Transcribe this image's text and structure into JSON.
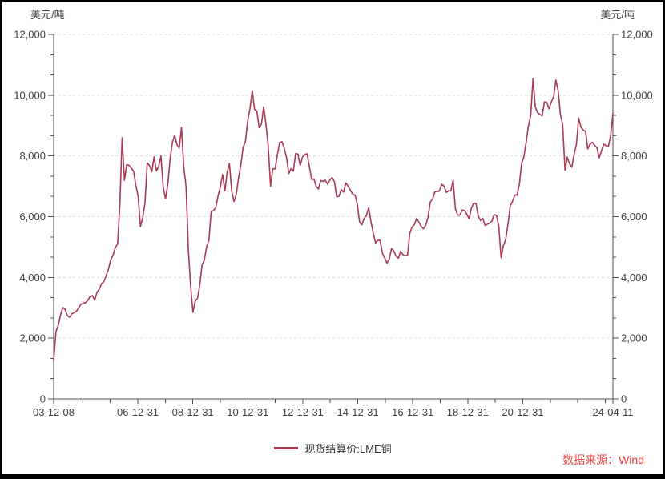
{
  "units": {
    "left_label": "美元/吨",
    "right_label": "美元/吨"
  },
  "legend": {
    "label": "现货结算价:LME铜",
    "swatch_color": "#a83a52"
  },
  "source": {
    "label": "数据来源：Wind",
    "color": "#e83c3c"
  },
  "chart_data": {
    "type": "line",
    "title": "",
    "xlabel": "",
    "ylabel_left": "美元/吨",
    "ylabel_right": "美元/吨",
    "ylim": [
      0,
      12000
    ],
    "y_ticks": [
      0,
      2000,
      4000,
      6000,
      8000,
      10000,
      12000
    ],
    "y_tick_labels": [
      "0",
      "2,000",
      "4,000",
      "6,000",
      "8,000",
      "10,000",
      "12,000"
    ],
    "y_minor_divisions": 3,
    "grid": "horizontal dashed lines at major y ticks",
    "legend_position": "bottom-center",
    "axis_color": "#4d4d4d",
    "grid_color": "#dcdcdc",
    "tick_label_color": "#404040",
    "x_range_decimal_years": [
      2003.94,
      2024.28
    ],
    "x_major_ticks": [
      {
        "label": "03-12-08",
        "t": 2003.94
      },
      {
        "label": "06-12-31",
        "t": 2007.0
      },
      {
        "label": "08-12-31",
        "t": 2009.0
      },
      {
        "label": "10-12-31",
        "t": 2011.0
      },
      {
        "label": "12-12-31",
        "t": 2013.0
      },
      {
        "label": "14-12-31",
        "t": 2015.0
      },
      {
        "label": "16-12-31",
        "t": 2017.0
      },
      {
        "label": "18-12-31",
        "t": 2019.0
      },
      {
        "label": "20-12-31",
        "t": 2021.0
      },
      {
        "label": "24-04-11",
        "t": 2024.28
      }
    ],
    "x_minor_ticks_t": [
      2005.0,
      2006.0,
      2008.0,
      2010.0,
      2012.0,
      2014.0,
      2016.0,
      2018.0,
      2020.0,
      2022.0,
      2023.0,
      2024.0
    ],
    "series": [
      {
        "name": "现货结算价:LME铜",
        "color": "#a83a52",
        "start_date": "2003-12-08",
        "end_date": "2024-04-11",
        "sampling": "monthly (approx. values read from plot, USD/ton)",
        "values": [
          1250,
          2210,
          2420,
          2760,
          3010,
          2950,
          2740,
          2690,
          2810,
          2840,
          2890,
          3010,
          3120,
          3150,
          3170,
          3250,
          3380,
          3400,
          3250,
          3520,
          3610,
          3800,
          3860,
          4060,
          4270,
          4580,
          4730,
          4980,
          5100,
          6390,
          8600,
          7200,
          7710,
          7690,
          7600,
          7500,
          7030,
          6680,
          5670,
          5960,
          6450,
          7770,
          7680,
          7480,
          7970,
          7510,
          7650,
          8000,
          6970,
          6590,
          7060,
          7890,
          8440,
          8680,
          8380,
          8260,
          8940,
          7640,
          6990,
          4930,
          3720,
          2850,
          3220,
          3310,
          3750,
          4410,
          4570,
          5010,
          5220,
          6170,
          6200,
          6290,
          6680,
          6980,
          7390,
          6850,
          7460,
          7750,
          6840,
          6500,
          6740,
          7280,
          7710,
          8290,
          8470,
          9150,
          9560,
          10150,
          9530,
          9480,
          8930,
          9040,
          9620,
          9040,
          8330,
          7000,
          7580,
          7570,
          8040,
          8440,
          8470,
          8260,
          7950,
          7420,
          7580,
          7500,
          8080,
          8060,
          7690,
          7960,
          8050,
          8070,
          7660,
          7230,
          7240,
          7000,
          6910,
          7190,
          7160,
          7200,
          7070,
          7210,
          7290,
          7150,
          6650,
          6670,
          6890,
          6810,
          7110,
          7000,
          6870,
          6740,
          6710,
          6420,
          5830,
          5730,
          5940,
          6040,
          6290,
          5830,
          5460,
          5130,
          5220,
          5220,
          4800,
          4640,
          4470,
          4600,
          4950,
          4870,
          4700,
          4640,
          4860,
          4750,
          4720,
          4730,
          5450,
          5660,
          5740,
          5940,
          5820,
          5680,
          5600,
          5720,
          5980,
          6480,
          6580,
          6810,
          6830,
          6840,
          7070,
          7010,
          6800,
          6850,
          6850,
          7200,
          6250,
          6050,
          6050,
          6220,
          6200,
          6080,
          5930,
          6280,
          6440,
          6440,
          6020,
          5870,
          5940,
          5710,
          5750,
          5790,
          5860,
          6070,
          6040,
          5690,
          4650,
          5050,
          5240,
          5740,
          6350,
          6500,
          6710,
          6710,
          7060,
          7760,
          7970,
          8460,
          9000,
          9340,
          10550,
          9610,
          9430,
          9370,
          9320,
          9780,
          9770,
          9550,
          9780,
          9940,
          10500,
          10160,
          9360,
          9020,
          7530,
          7960,
          7740,
          7630,
          8050,
          8370,
          9250,
          8950,
          8850,
          8810,
          8230,
          8390,
          8450,
          8350,
          8270,
          7940,
          8170,
          8390,
          8340,
          8310,
          8680,
          9400
        ]
      }
    ]
  }
}
